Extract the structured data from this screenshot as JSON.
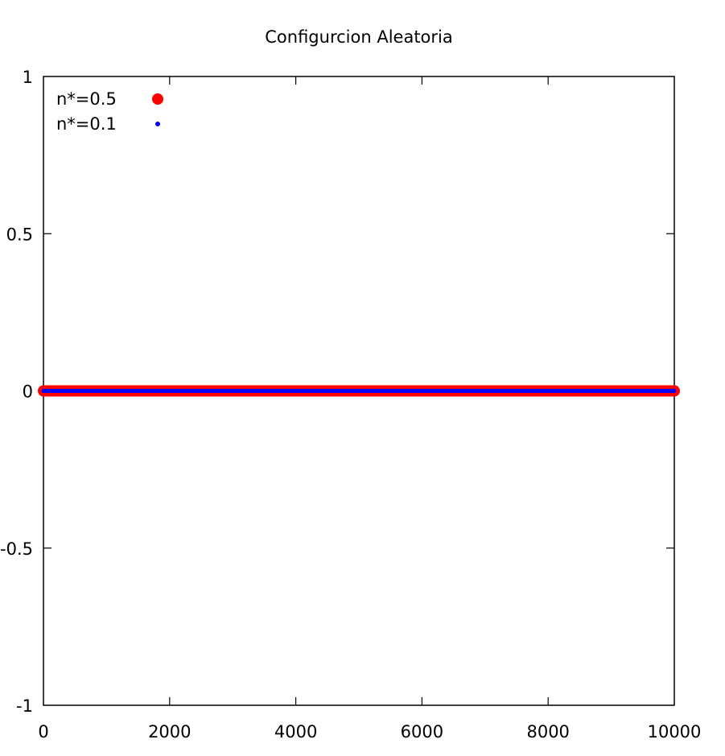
{
  "chart_data": {
    "type": "scatter",
    "title": "Configurcion Aleatoria",
    "xlabel": "",
    "ylabel": "",
    "xlim": [
      0,
      10000
    ],
    "ylim": [
      -1,
      1
    ],
    "x_ticks": [
      0,
      2000,
      4000,
      6000,
      8000,
      10000
    ],
    "x_tick_labels": [
      "0",
      "2000",
      "4000",
      "6000",
      "8000",
      "10000"
    ],
    "y_ticks": [
      -1,
      -0.5,
      0,
      0.5,
      1
    ],
    "y_tick_labels": [
      "-1",
      "-0.5",
      "0",
      "0.5",
      "1"
    ],
    "grid": false,
    "legend_position": "top-left",
    "series": [
      {
        "name": "n*=0.5",
        "color": "#ff0000",
        "marker": "large-dot",
        "x_range": [
          0,
          10000
        ],
        "y_constant": 0
      },
      {
        "name": "n*=0.1",
        "color": "#0000ff",
        "marker": "small-dot",
        "x_range": [
          0,
          10000
        ],
        "y_constant": 0
      }
    ]
  }
}
